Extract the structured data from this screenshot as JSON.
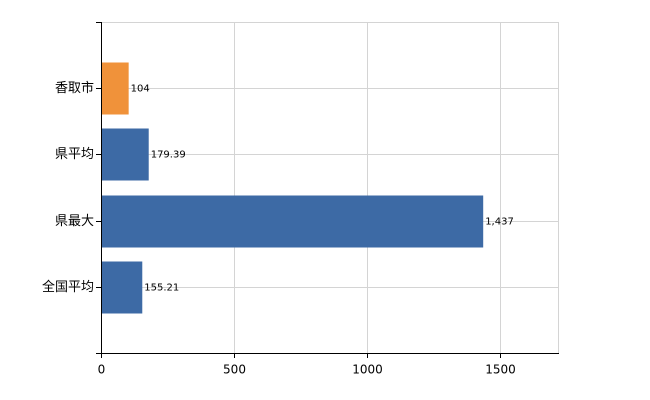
{
  "chart_data": {
    "type": "barh",
    "categories": [
      "香取市",
      "県平均",
      "県最大",
      "全国平均"
    ],
    "values": [
      104,
      179.39,
      1437,
      155.21
    ],
    "value_labels": [
      "104",
      "179.39",
      "1,437",
      "155.21"
    ],
    "colors": [
      "#f0923a",
      "#3d6aa5",
      "#3d6aa5",
      "#3d6aa5"
    ],
    "xlim": [
      0,
      1722
    ],
    "xticks": [
      0,
      500,
      1000,
      1500
    ],
    "grid": true
  }
}
